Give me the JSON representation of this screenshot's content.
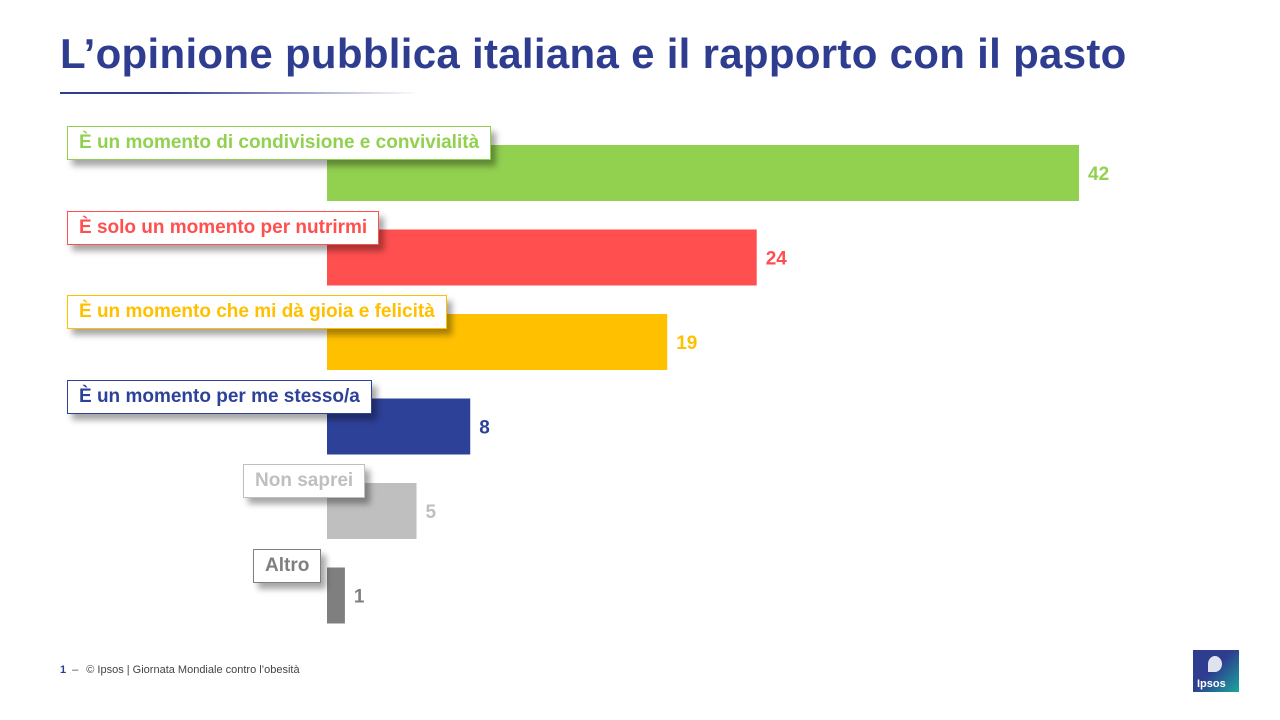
{
  "header": {
    "title": "L’opinione pubblica italiana e il rapporto con il pasto"
  },
  "chart_data": {
    "type": "bar",
    "orientation": "horizontal",
    "categories": [
      "È un momento di condivisione e convivialità",
      "È solo un momento per nutrirmi",
      "È un momento che mi dà gioia e felicità",
      "È un momento per me stesso/a",
      "Non saprei",
      "Altro"
    ],
    "values": [
      42,
      24,
      19,
      8,
      5,
      1
    ],
    "colors": [
      "#92d050",
      "#ff4f4f",
      "#ffc000",
      "#2e4199",
      "#bfbfbf",
      "#7f7f7f"
    ],
    "xlim": [
      0,
      42
    ],
    "grid": false,
    "legend": "none"
  },
  "footer": {
    "page_number": "1",
    "dash": "–",
    "text": "© Ipsos | Giornata Mondiale contro l’obesità"
  },
  "logo": {
    "text": "Ipsos",
    "icon": "ipsos-logo-icon"
  }
}
